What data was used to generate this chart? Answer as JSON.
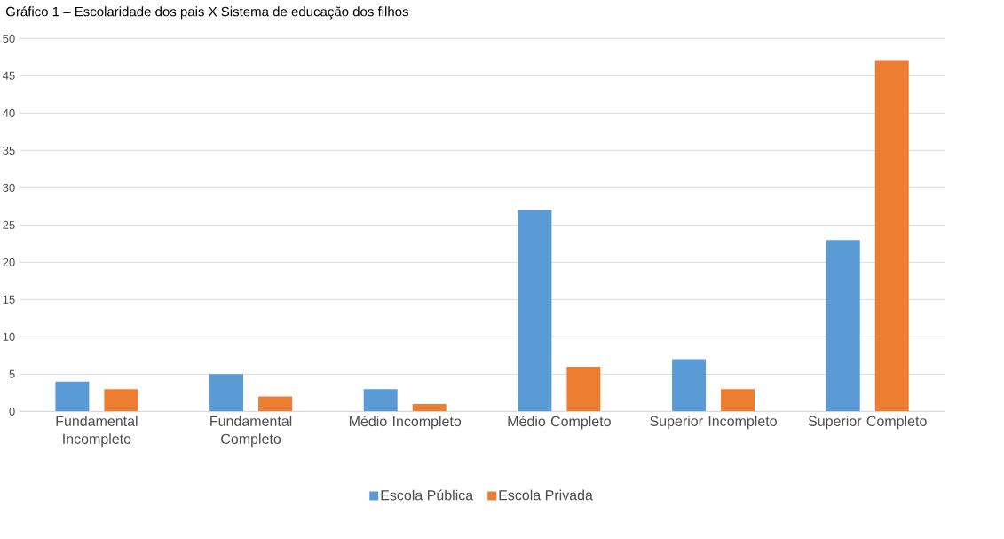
{
  "chart_data": {
    "type": "bar",
    "title": "Gráfico 1 – Escolaridade dos pais X Sistema de educação dos filhos",
    "categories": [
      "Fundamental Incompleto",
      "Fundamental Completo",
      "Médio Incompleto",
      "Médio Completo",
      "Superior Incompleto",
      "Superior Completo"
    ],
    "series": [
      {
        "name": "Escola Pública",
        "color": "#5b9bd5",
        "values": [
          4,
          5,
          3,
          27,
          7,
          23
        ]
      },
      {
        "name": "Escola Privada",
        "color": "#ed7d31",
        "values": [
          3,
          2,
          1,
          6,
          3,
          47
        ]
      }
    ],
    "ylim": [
      0,
      50
    ],
    "yticks": [
      0,
      5,
      10,
      15,
      20,
      25,
      30,
      35,
      40,
      45,
      50
    ],
    "grid": "y",
    "legend": "bottom"
  }
}
